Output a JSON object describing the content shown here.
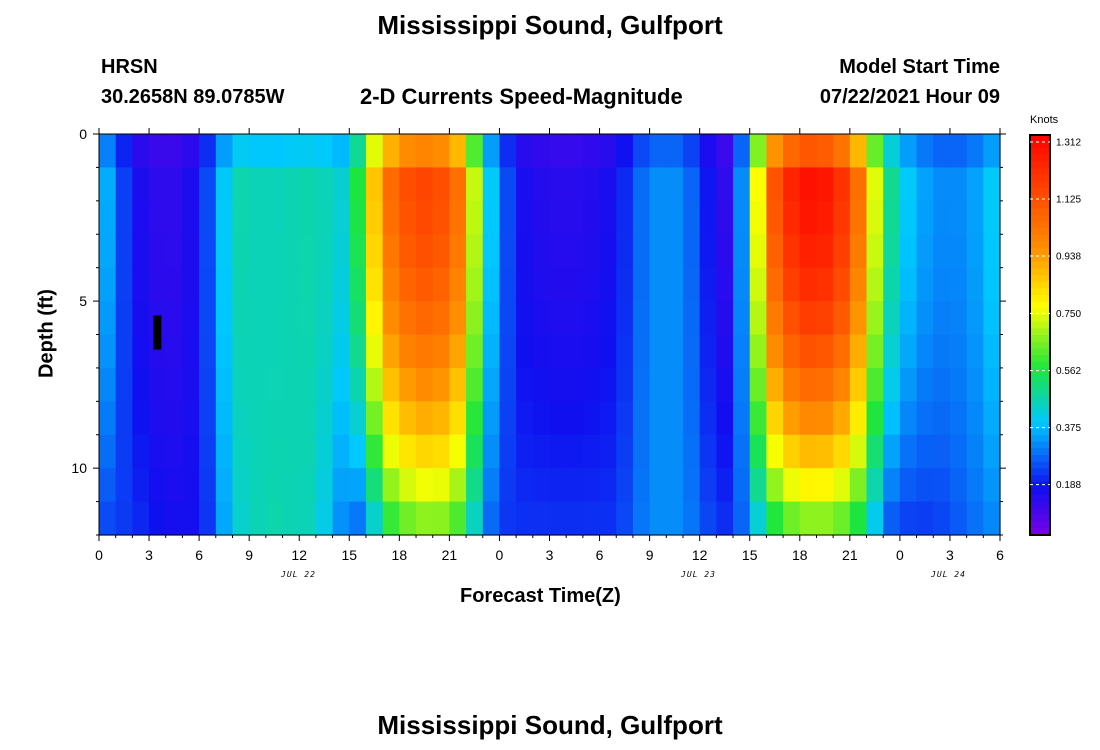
{
  "header": {
    "title_top": "Mississippi Sound, Gulfport",
    "station_code": "HRSN",
    "station_coords": "30.2658N  89.0785W",
    "plot_title": "2-D Currents Speed-Magnitude",
    "model_start_label": "Model Start Time",
    "model_start_value": "07/22/2021 Hour 09",
    "title_bottom": "Mississippi Sound, Gulfport"
  },
  "chart_data": {
    "type": "heatmap",
    "title": "2-D Currents Speed-Magnitude",
    "xlabel": "Forecast Time(Z)",
    "ylabel": "Depth (ft)",
    "units": "Knots",
    "x_start_hour": 0,
    "x_end_hour": 54,
    "x_step_hours": 1,
    "x_tick_labels": [
      "0",
      "3",
      "6",
      "9",
      "12",
      "15",
      "18",
      "21",
      "0",
      "3",
      "6",
      "9",
      "12",
      "15",
      "18",
      "21",
      "0",
      "3",
      "6"
    ],
    "date_labels": [
      {
        "text": "JUL 22",
        "hour": 12
      },
      {
        "text": "JUL 23",
        "hour": 36
      },
      {
        "text": "JUL 24",
        "hour": 51
      }
    ],
    "y_range": [
      0,
      12
    ],
    "y_ticks": [
      0,
      5,
      10
    ],
    "depth_levels": 12,
    "colorbar_range": [
      0.0,
      1.312
    ],
    "colorbar_tick_labels": [
      "1.312",
      "1.125",
      "0.938",
      "0.750",
      "0.562",
      "0.375",
      "0.188"
    ],
    "now_marker_hour": 3.5,
    "now_marker_depth": 6,
    "speed_keyframes": {
      "hours": [
        0,
        2,
        4,
        6,
        7,
        8,
        10,
        13,
        15,
        16,
        17,
        19,
        21,
        22,
        23,
        24,
        25,
        27,
        29,
        31,
        33,
        35,
        37,
        38,
        39,
        40,
        41,
        43,
        45,
        46,
        47,
        48,
        49,
        50,
        52,
        54
      ],
      "surface": [
        0.4,
        0.15,
        0.1,
        0.15,
        0.3,
        0.45,
        0.43,
        0.45,
        0.4,
        0.7,
        1.0,
        1.15,
        1.1,
        0.95,
        0.45,
        0.3,
        0.15,
        0.12,
        0.12,
        0.15,
        0.3,
        0.3,
        0.12,
        0.1,
        0.5,
        1.0,
        1.2,
        1.3,
        1.15,
        0.9,
        0.55,
        0.4,
        0.35,
        0.3,
        0.3,
        0.4
      ],
      "bottom": [
        0.22,
        0.2,
        0.15,
        0.15,
        0.25,
        0.4,
        0.45,
        0.43,
        0.25,
        0.25,
        0.5,
        0.6,
        0.6,
        0.5,
        0.3,
        0.2,
        0.2,
        0.2,
        0.2,
        0.2,
        0.3,
        0.3,
        0.2,
        0.2,
        0.3,
        0.45,
        0.55,
        0.6,
        0.55,
        0.45,
        0.25,
        0.2,
        0.2,
        0.2,
        0.25,
        0.3
      ]
    }
  }
}
